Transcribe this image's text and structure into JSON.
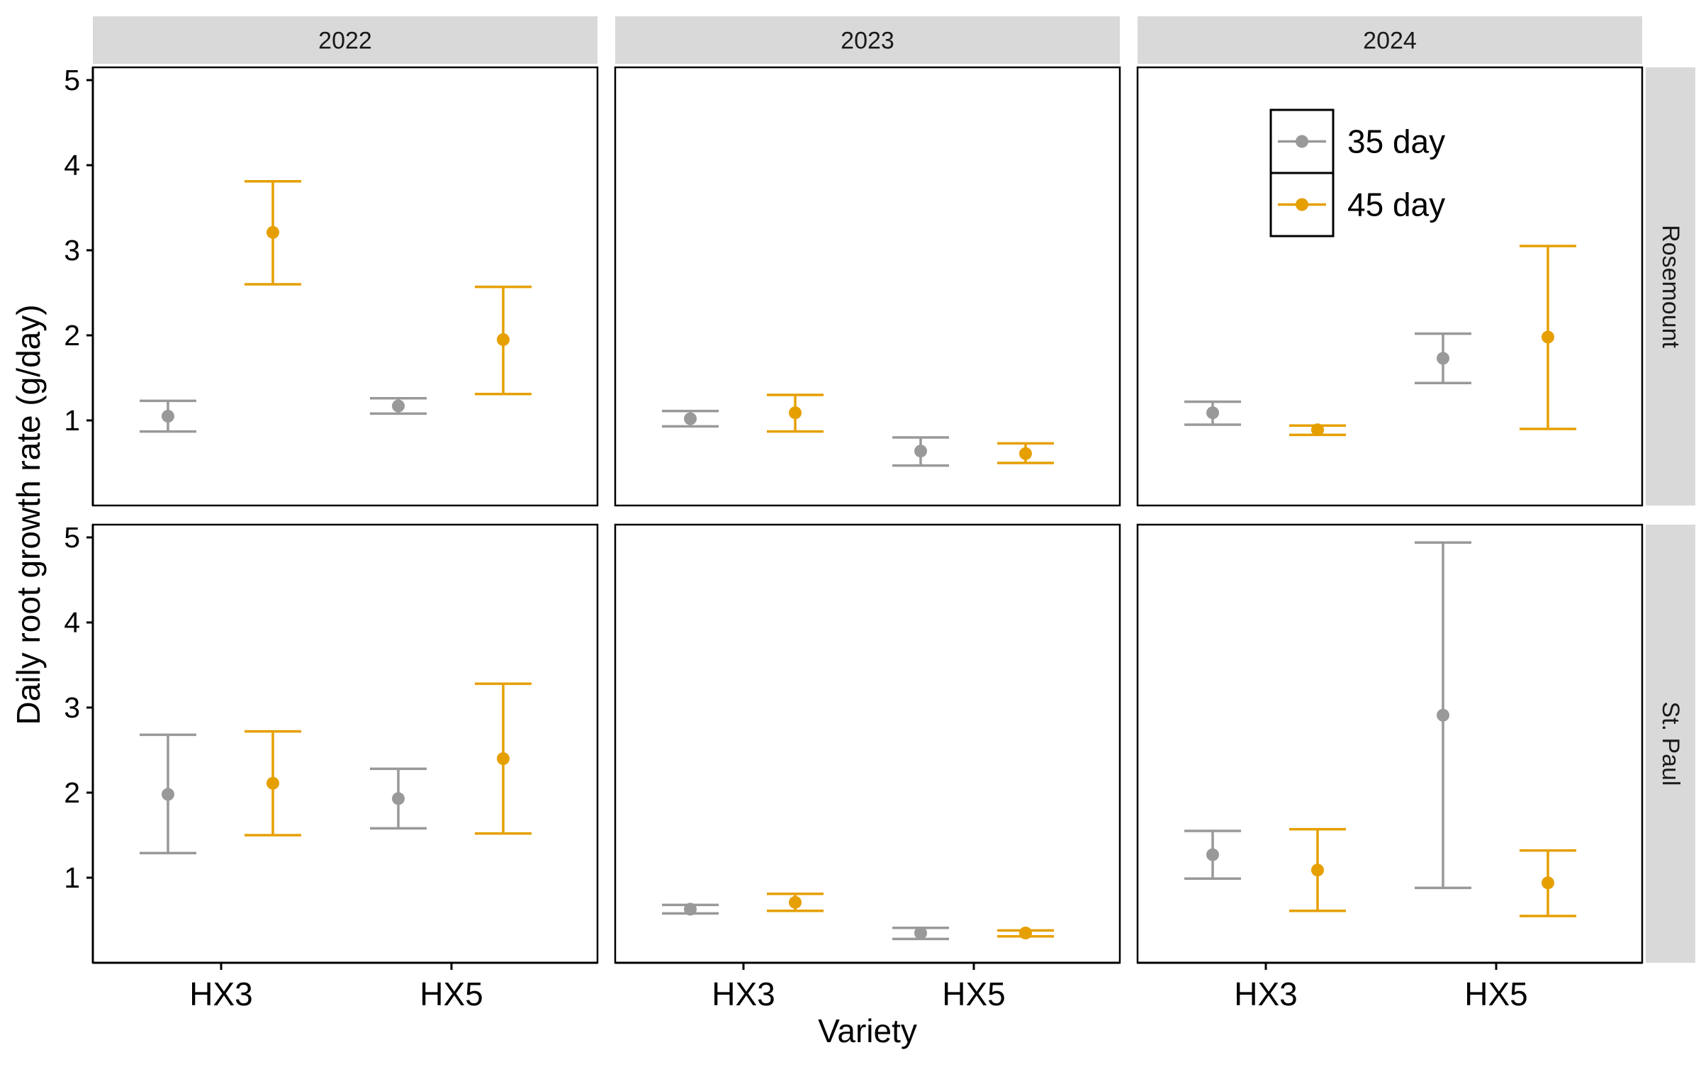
{
  "chart_data": {
    "type": "errorbar",
    "xlabel": "Variety",
    "ylabel": "Daily root growth rate (g/day)",
    "ylim": [
      0,
      5.15
    ],
    "yticks": [
      1,
      2,
      3,
      4,
      5
    ],
    "varieties": [
      "HX3",
      "HX5"
    ],
    "years": [
      "2022",
      "2023",
      "2024"
    ],
    "locations": [
      "Rosemount",
      "St. Paul"
    ],
    "legend": {
      "position": "top-right of Rosemount 2024 panel",
      "entries": [
        {
          "label": "35 day",
          "color": "#999999"
        },
        {
          "label": "45 day",
          "color": "#E69F00"
        }
      ]
    },
    "series": [
      {
        "name": "35 day",
        "color": "#999999",
        "points": [
          {
            "location": "Rosemount",
            "year": "2022",
            "variety": "HX3",
            "mean": 1.05,
            "lower": 0.87,
            "upper": 1.23
          },
          {
            "location": "Rosemount",
            "year": "2022",
            "variety": "HX5",
            "mean": 1.17,
            "lower": 1.08,
            "upper": 1.26
          },
          {
            "location": "Rosemount",
            "year": "2023",
            "variety": "HX3",
            "mean": 1.02,
            "lower": 0.93,
            "upper": 1.11
          },
          {
            "location": "Rosemount",
            "year": "2023",
            "variety": "HX5",
            "mean": 0.64,
            "lower": 0.47,
            "upper": 0.8
          },
          {
            "location": "Rosemount",
            "year": "2024",
            "variety": "HX3",
            "mean": 1.09,
            "lower": 0.95,
            "upper": 1.22
          },
          {
            "location": "Rosemount",
            "year": "2024",
            "variety": "HX5",
            "mean": 1.73,
            "lower": 1.44,
            "upper": 2.02
          },
          {
            "location": "St. Paul",
            "year": "2022",
            "variety": "HX3",
            "mean": 1.98,
            "lower": 1.29,
            "upper": 2.68
          },
          {
            "location": "St. Paul",
            "year": "2022",
            "variety": "HX5",
            "mean": 1.93,
            "lower": 1.58,
            "upper": 2.28
          },
          {
            "location": "St. Paul",
            "year": "2023",
            "variety": "HX3",
            "mean": 0.63,
            "lower": 0.58,
            "upper": 0.68
          },
          {
            "location": "St. Paul",
            "year": "2023",
            "variety": "HX5",
            "mean": 0.35,
            "lower": 0.28,
            "upper": 0.41
          },
          {
            "location": "St. Paul",
            "year": "2024",
            "variety": "HX3",
            "mean": 1.27,
            "lower": 0.99,
            "upper": 1.55
          },
          {
            "location": "St. Paul",
            "year": "2024",
            "variety": "HX5",
            "mean": 2.91,
            "lower": 0.88,
            "upper": 4.94
          }
        ]
      },
      {
        "name": "45 day",
        "color": "#E69F00",
        "points": [
          {
            "location": "Rosemount",
            "year": "2022",
            "variety": "HX3",
            "mean": 3.21,
            "lower": 2.6,
            "upper": 3.81
          },
          {
            "location": "Rosemount",
            "year": "2022",
            "variety": "HX5",
            "mean": 1.95,
            "lower": 1.31,
            "upper": 2.57
          },
          {
            "location": "Rosemount",
            "year": "2023",
            "variety": "HX3",
            "mean": 1.09,
            "lower": 0.87,
            "upper": 1.3
          },
          {
            "location": "Rosemount",
            "year": "2023",
            "variety": "HX5",
            "mean": 0.61,
            "lower": 0.5,
            "upper": 0.73
          },
          {
            "location": "Rosemount",
            "year": "2024",
            "variety": "HX3",
            "mean": 0.89,
            "lower": 0.83,
            "upper": 0.94
          },
          {
            "location": "Rosemount",
            "year": "2024",
            "variety": "HX5",
            "mean": 1.98,
            "lower": 0.9,
            "upper": 3.05
          },
          {
            "location": "St. Paul",
            "year": "2022",
            "variety": "HX3",
            "mean": 2.11,
            "lower": 1.5,
            "upper": 2.72
          },
          {
            "location": "St. Paul",
            "year": "2022",
            "variety": "HX5",
            "mean": 2.4,
            "lower": 1.52,
            "upper": 3.28
          },
          {
            "location": "St. Paul",
            "year": "2023",
            "variety": "HX3",
            "mean": 0.71,
            "lower": 0.61,
            "upper": 0.81
          },
          {
            "location": "St. Paul",
            "year": "2023",
            "variety": "HX5",
            "mean": 0.35,
            "lower": 0.31,
            "upper": 0.38
          },
          {
            "location": "St. Paul",
            "year": "2024",
            "variety": "HX3",
            "mean": 1.09,
            "lower": 0.61,
            "upper": 1.57
          },
          {
            "location": "St. Paul",
            "year": "2024",
            "variety": "HX5",
            "mean": 0.94,
            "lower": 0.55,
            "upper": 1.32
          }
        ]
      }
    ]
  }
}
